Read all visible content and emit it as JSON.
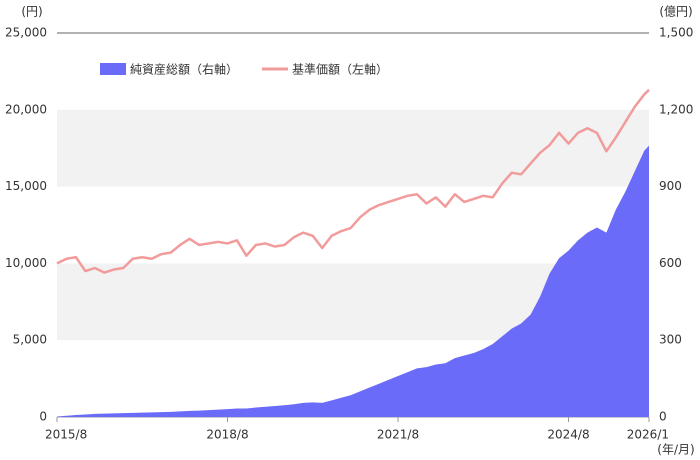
{
  "chart_data": {
    "type": "line-area",
    "y_unit": "(円)",
    "y2_unit": "(億円)",
    "x_unit": "(年/月)",
    "x": [
      "2015/8",
      "2015/10",
      "2015/12",
      "2016/2",
      "2016/4",
      "2016/6",
      "2016/8",
      "2016/10",
      "2016/12",
      "2017/2",
      "2017/4",
      "2017/6",
      "2017/8",
      "2017/10",
      "2017/12",
      "2018/2",
      "2018/4",
      "2018/6",
      "2018/8",
      "2018/10",
      "2018/12",
      "2019/2",
      "2019/4",
      "2019/6",
      "2019/8",
      "2019/10",
      "2019/12",
      "2020/2",
      "2020/4",
      "2020/6",
      "2020/8",
      "2020/10",
      "2020/12",
      "2021/2",
      "2021/4",
      "2021/6",
      "2021/8",
      "2021/10",
      "2021/12",
      "2022/2",
      "2022/4",
      "2022/6",
      "2022/8",
      "2022/10",
      "2022/12",
      "2023/2",
      "2023/4",
      "2023/6",
      "2023/8",
      "2023/10",
      "2023/12",
      "2024/2",
      "2024/4",
      "2024/6",
      "2024/8",
      "2024/10",
      "2024/12",
      "2025/2",
      "2025/4",
      "2025/6",
      "2025/8",
      "2025/10",
      "2025/12",
      "2026/1"
    ],
    "series": [
      {
        "name": "純資産総額（右軸）",
        "color": "#6b6bfa",
        "axis": "y2",
        "kind": "area",
        "values": [
          2,
          5,
          8,
          10,
          12,
          13,
          14,
          15,
          16,
          17,
          18,
          19,
          20,
          22,
          24,
          25,
          27,
          29,
          31,
          33,
          33,
          37,
          40,
          43,
          46,
          50,
          55,
          57,
          55,
          65,
          75,
          85,
          100,
          115,
          130,
          145,
          160,
          175,
          190,
          195,
          205,
          210,
          230,
          240,
          250,
          265,
          285,
          315,
          345,
          365,
          400,
          470,
          560,
          620,
          650,
          690,
          720,
          740,
          720,
          810,
          880,
          960,
          1040,
          1060
        ]
      },
      {
        "name": "基準価額（左軸）",
        "color": "#f29b9b",
        "axis": "y",
        "kind": "line",
        "values": [
          10000,
          10300,
          10400,
          9500,
          9700,
          9400,
          9600,
          9700,
          10300,
          10400,
          10300,
          10600,
          10700,
          11200,
          11600,
          11200,
          11300,
          11400,
          11300,
          11500,
          10500,
          11200,
          11300,
          11100,
          11200,
          11700,
          12000,
          11800,
          11000,
          11800,
          12100,
          12300,
          13000,
          13500,
          13800,
          14000,
          14200,
          14400,
          14500,
          13900,
          14300,
          13700,
          14500,
          14000,
          14200,
          14400,
          14300,
          15200,
          15900,
          15800,
          16500,
          17200,
          17700,
          18500,
          17800,
          18500,
          18800,
          18500,
          17300,
          18200,
          19200,
          20200,
          21000,
          21300
        ]
      }
    ],
    "xticks": [
      "2015/8",
      "2018/8",
      "2021/8",
      "2024/8",
      "2026/1"
    ],
    "ylim": [
      0,
      25000
    ],
    "yticks": [
      0,
      {
        "value": 5000,
        "label": "5,000"
      },
      {
        "value": 10000,
        "label": "10,000"
      },
      {
        "value": 15000,
        "label": "15,000"
      },
      {
        "value": 20000,
        "label": "20,000"
      },
      {
        "value": 25000,
        "label": "25,000"
      }
    ],
    "y2lim": [
      0,
      1500
    ],
    "y2ticks": [
      0,
      300,
      600,
      900,
      {
        "value": 1200,
        "label": "1,200"
      },
      {
        "value": 1500,
        "label": "1,500"
      }
    ],
    "grid": true
  }
}
